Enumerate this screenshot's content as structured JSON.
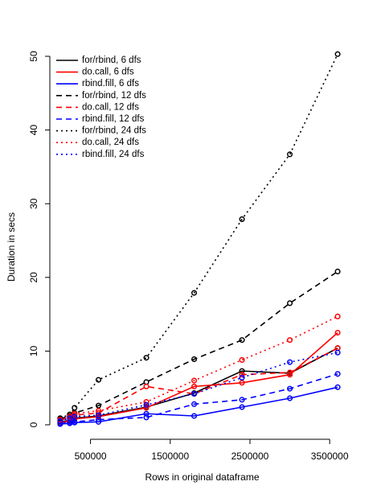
{
  "chart_data": {
    "type": "line",
    "title": "",
    "xlabel": "Rows in original dataframe",
    "ylabel": "Duration in secs",
    "xlim": [
      0,
      3700000
    ],
    "ylim": [
      0,
      50
    ],
    "x_ticks": [
      500000,
      1500000,
      2500000,
      3500000
    ],
    "x_tick_labels": [
      "500000",
      "1500000",
      "2500000",
      "3500000"
    ],
    "y_ticks": [
      0,
      10,
      20,
      30,
      40,
      50
    ],
    "y_tick_labels": [
      "0",
      "10",
      "20",
      "30",
      "40",
      "50"
    ],
    "grid": false,
    "legend_position": "top-left",
    "x": [
      120000,
      240000,
      300000,
      600000,
      1200000,
      1800000,
      2400000,
      3000000,
      3600000
    ],
    "series": [
      {
        "name": "for/rbind, 6 dfs",
        "color": "#000000",
        "dash": "solid",
        "values": [
          0.4,
          0.6,
          0.9,
          1.2,
          2.4,
          4.3,
          7.3,
          7.0,
          10.4
        ]
      },
      {
        "name": "do.call, 6 dfs",
        "color": "#ff0000",
        "dash": "solid",
        "values": [
          0.3,
          0.5,
          0.8,
          1.1,
          2.3,
          5.2,
          5.7,
          6.8,
          12.5
        ]
      },
      {
        "name": "rbind.fill, 6 dfs",
        "color": "#0000ff",
        "dash": "solid",
        "values": [
          0.1,
          0.2,
          0.3,
          0.4,
          1.5,
          1.2,
          2.4,
          3.6,
          5.1
        ]
      },
      {
        "name": "for/rbind, 12 dfs",
        "color": "#000000",
        "dash": "dashed",
        "values": [
          0.8,
          1.2,
          1.6,
          2.6,
          5.8,
          8.9,
          11.5,
          16.5,
          20.8
        ]
      },
      {
        "name": "do.call, 12 dfs",
        "color": "#ff0000",
        "dash": "dashed",
        "values": [
          0.6,
          1.0,
          1.3,
          1.6,
          5.2,
          4.2,
          6.8,
          7.1,
          10.4
        ]
      },
      {
        "name": "rbind.fill, 12 dfs",
        "color": "#0000ff",
        "dash": "dashed",
        "values": [
          0.2,
          0.3,
          0.4,
          0.7,
          1.0,
          2.8,
          3.4,
          4.9,
          6.9
        ]
      },
      {
        "name": "for/rbind, 24 dfs",
        "color": "#000000",
        "dash": "dotted",
        "values": [
          0.9,
          1.4,
          2.3,
          6.1,
          9.1,
          17.9,
          27.9,
          36.7,
          50.3
        ]
      },
      {
        "name": "do.call, 24 dfs",
        "color": "#ff0000",
        "dash": "dotted",
        "values": [
          0.7,
          1.1,
          1.5,
          1.9,
          3.1,
          6.0,
          8.8,
          11.5,
          14.7
        ]
      },
      {
        "name": "rbind.fill, 24 dfs",
        "color": "#0000ff",
        "dash": "dotted",
        "values": [
          0.5,
          0.9,
          1.1,
          1.3,
          2.7,
          4.2,
          6.4,
          8.5,
          9.8
        ]
      }
    ]
  }
}
